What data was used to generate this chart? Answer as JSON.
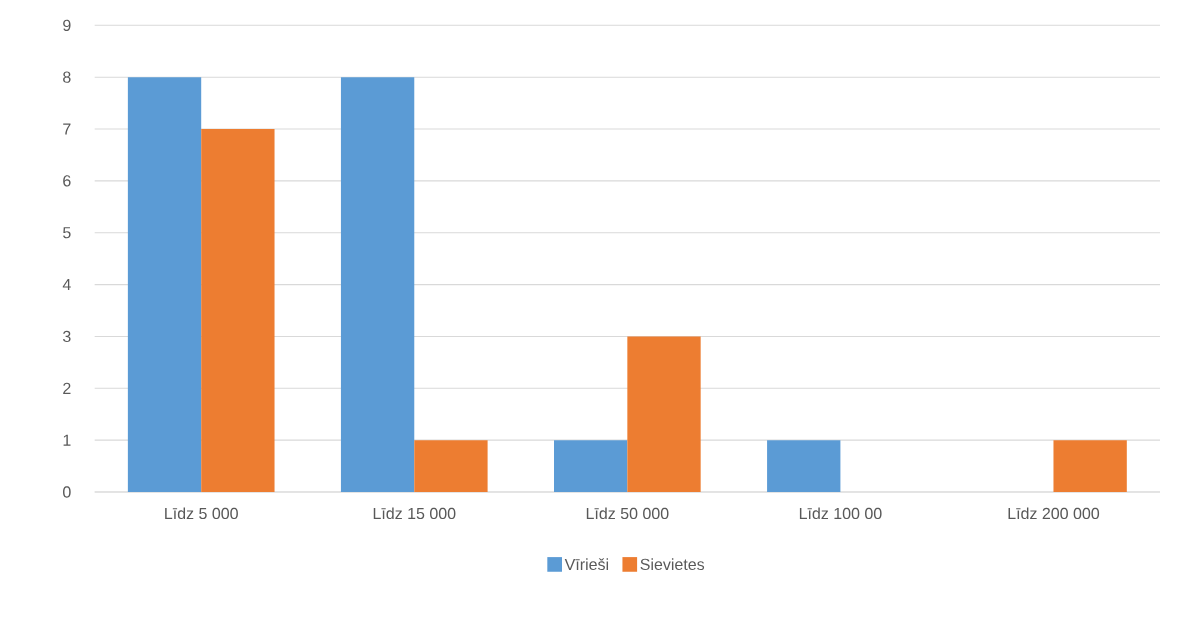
{
  "chart_data": {
    "type": "bar",
    "categories": [
      "Līdz 5 000",
      "Līdz 15 000",
      "Līdz 50 000",
      "Līdz 100 00",
      "Līdz 200 000"
    ],
    "series": [
      {
        "name": "Vīrieši",
        "color": "#5b9bd5",
        "values": [
          8,
          8,
          1,
          1,
          0
        ]
      },
      {
        "name": "Sievietes",
        "color": "#ed7d31",
        "values": [
          7,
          1,
          3,
          0,
          1
        ]
      }
    ],
    "ylim": [
      0,
      9
    ],
    "yticks": [
      0,
      1,
      2,
      3,
      4,
      5,
      6,
      7,
      8,
      9
    ],
    "grid": "y",
    "legend": "bottom"
  }
}
